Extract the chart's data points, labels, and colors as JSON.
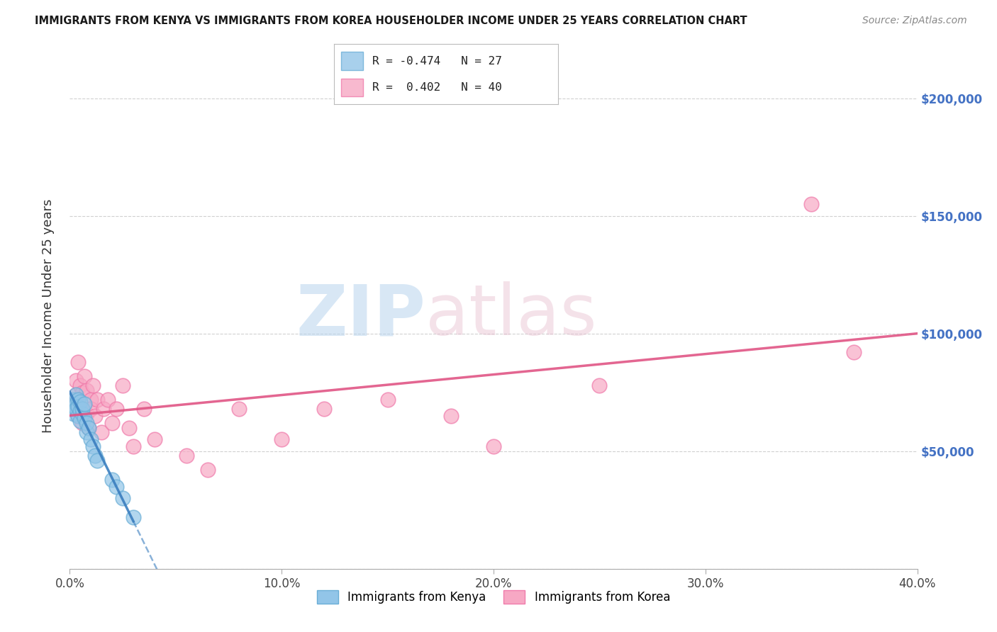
{
  "title": "IMMIGRANTS FROM KENYA VS IMMIGRANTS FROM KOREA HOUSEHOLDER INCOME UNDER 25 YEARS CORRELATION CHART",
  "source": "Source: ZipAtlas.com",
  "ylabel": "Householder Income Under 25 years",
  "xlim": [
    0.0,
    0.4
  ],
  "ylim": [
    0,
    215000
  ],
  "xtick_labels": [
    "0.0%",
    "10.0%",
    "20.0%",
    "30.0%",
    "40.0%"
  ],
  "xtick_vals": [
    0.0,
    0.1,
    0.2,
    0.3,
    0.4
  ],
  "ytick_vals": [
    0,
    50000,
    100000,
    150000,
    200000
  ],
  "right_ytick_labels": [
    "$50,000",
    "$100,000",
    "$150,000",
    "$200,000"
  ],
  "right_ytick_vals": [
    50000,
    100000,
    150000,
    200000
  ],
  "kenya_R": -0.474,
  "kenya_N": 27,
  "korea_R": 0.402,
  "korea_N": 40,
  "kenya_color": "#92c5e8",
  "kenya_edge_color": "#6aaed6",
  "korea_color": "#f7a8c4",
  "korea_edge_color": "#f07bab",
  "kenya_line_color": "#3a7ebf",
  "korea_line_color": "#e05585",
  "kenya_scatter_x": [
    0.001,
    0.002,
    0.002,
    0.003,
    0.003,
    0.003,
    0.004,
    0.004,
    0.004,
    0.005,
    0.005,
    0.005,
    0.006,
    0.006,
    0.007,
    0.007,
    0.008,
    0.008,
    0.009,
    0.01,
    0.011,
    0.012,
    0.013,
    0.02,
    0.022,
    0.025,
    0.03
  ],
  "kenya_scatter_y": [
    68000,
    72000,
    66000,
    70000,
    68000,
    74000,
    65000,
    72000,
    69000,
    67000,
    63000,
    71000,
    66000,
    68000,
    64000,
    70000,
    58000,
    62000,
    60000,
    55000,
    52000,
    48000,
    46000,
    38000,
    35000,
    30000,
    22000
  ],
  "korea_scatter_x": [
    0.001,
    0.002,
    0.003,
    0.003,
    0.004,
    0.004,
    0.005,
    0.005,
    0.006,
    0.006,
    0.007,
    0.008,
    0.008,
    0.009,
    0.01,
    0.01,
    0.011,
    0.012,
    0.013,
    0.015,
    0.016,
    0.018,
    0.02,
    0.022,
    0.025,
    0.028,
    0.03,
    0.035,
    0.04,
    0.055,
    0.065,
    0.08,
    0.1,
    0.12,
    0.15,
    0.18,
    0.2,
    0.25,
    0.35,
    0.37
  ],
  "korea_scatter_y": [
    68000,
    72000,
    80000,
    74000,
    65000,
    88000,
    70000,
    78000,
    62000,
    75000,
    82000,
    66000,
    76000,
    60000,
    72000,
    68000,
    78000,
    65000,
    72000,
    58000,
    68000,
    72000,
    62000,
    68000,
    78000,
    60000,
    52000,
    68000,
    55000,
    48000,
    42000,
    68000,
    55000,
    68000,
    72000,
    65000,
    52000,
    78000,
    155000,
    92000
  ],
  "watermark_zip": "ZIP",
  "watermark_atlas": "atlas",
  "background_color": "#ffffff",
  "grid_color": "#d0d0d0",
  "legend_kenya_text": "R = -0.474   N = 27",
  "legend_korea_text": "R =  0.402   N = 40"
}
